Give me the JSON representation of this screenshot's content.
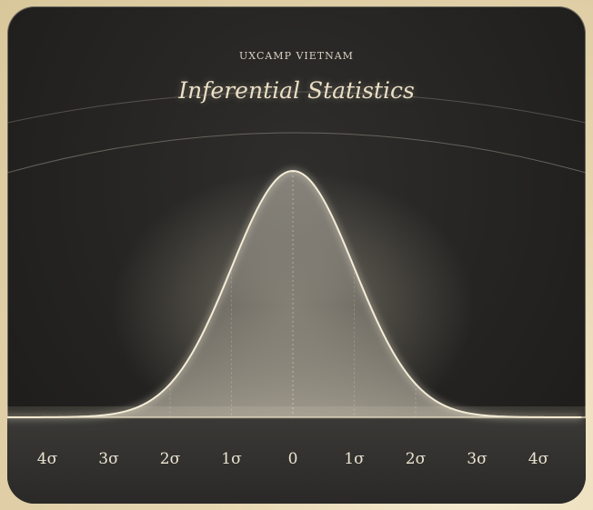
{
  "header": {
    "brand": "UXCAMP VIETNAM",
    "title": "Inferential Statistics"
  },
  "colors": {
    "card_background": "#262523",
    "curve_stroke": "#f3ead3",
    "fill": "#d8d2c4",
    "frame": "#e9dcbf"
  },
  "chart_data": {
    "type": "area",
    "title": "Inferential Statistics",
    "xlabel": "",
    "ylabel": "",
    "distribution": "normal",
    "mean": 0,
    "std": 1,
    "xlim": [
      -4,
      4
    ],
    "x_ticks": [
      -4,
      -3,
      -2,
      -1,
      0,
      1,
      2,
      3,
      4
    ],
    "tick_labels": [
      "4σ",
      "3σ",
      "2σ",
      "1σ",
      "0",
      "1σ",
      "2σ",
      "3σ",
      "4σ"
    ],
    "reference_lines_at": [
      -2,
      -1,
      0,
      1,
      2
    ],
    "grid": false,
    "legend": "none"
  }
}
